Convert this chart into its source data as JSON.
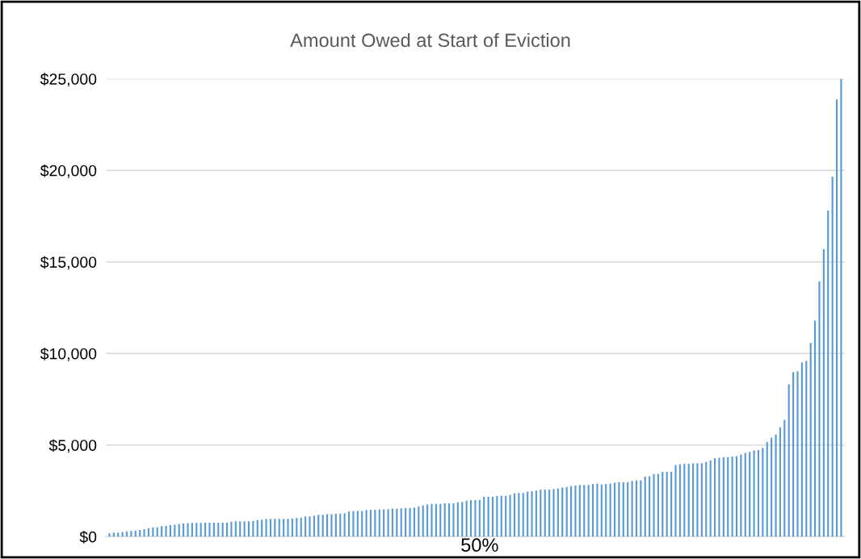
{
  "chart_data": {
    "type": "bar",
    "title": "Amount Owed at Start of Eviction",
    "categories": [
      null,
      null,
      null,
      null,
      null,
      null,
      null,
      null,
      null,
      null,
      null,
      null,
      null,
      null,
      null,
      null,
      null,
      null,
      null,
      null,
      null,
      null,
      null,
      null,
      null,
      null,
      null,
      null,
      null,
      null,
      null,
      null,
      null,
      null,
      null,
      null,
      null,
      null,
      null,
      null,
      null,
      null,
      null,
      null,
      null,
      null,
      null,
      null,
      null,
      null,
      null,
      null,
      null,
      null,
      null,
      null,
      null,
      null,
      null,
      null,
      null,
      null,
      null,
      null,
      null,
      null,
      null,
      null,
      null,
      null,
      null,
      null,
      null,
      null,
      null,
      null,
      null,
      null,
      null,
      null,
      null,
      null,
      null,
      null,
      null,
      "50%",
      null,
      null,
      null,
      null,
      null,
      null,
      null,
      null,
      null,
      null,
      null,
      null,
      null,
      null,
      null,
      null,
      null,
      null,
      null,
      null,
      null,
      null,
      null,
      null,
      null,
      null,
      null,
      null,
      null,
      null,
      null,
      null,
      null,
      null,
      null,
      null,
      null,
      null,
      null,
      null,
      null,
      null,
      null,
      null,
      null,
      null,
      null,
      null,
      null,
      null,
      null,
      null,
      null,
      null,
      null,
      null,
      null,
      null,
      null,
      null,
      null,
      null,
      null,
      null,
      null,
      null,
      null,
      null,
      null,
      null,
      null,
      null,
      null,
      null,
      null,
      null,
      null,
      null,
      null,
      null,
      null,
      null,
      null
    ],
    "values": [
      190,
      220,
      220,
      250,
      290,
      310,
      320,
      370,
      410,
      460,
      510,
      510,
      570,
      590,
      630,
      650,
      690,
      720,
      740,
      750,
      750,
      750,
      760,
      760,
      760,
      760,
      760,
      760,
      820,
      840,
      840,
      840,
      840,
      850,
      900,
      930,
      970,
      970,
      970,
      970,
      970,
      970,
      990,
      1010,
      1040,
      1100,
      1100,
      1150,
      1190,
      1190,
      1220,
      1220,
      1250,
      1260,
      1280,
      1380,
      1400,
      1400,
      1400,
      1460,
      1470,
      1470,
      1490,
      1490,
      1500,
      1530,
      1530,
      1540,
      1570,
      1570,
      1590,
      1650,
      1710,
      1750,
      1780,
      1780,
      1780,
      1820,
      1820,
      1820,
      1870,
      1900,
      1960,
      1990,
      1990,
      2010,
      2180,
      2180,
      2180,
      2210,
      2230,
      2230,
      2280,
      2370,
      2380,
      2380,
      2460,
      2480,
      2510,
      2570,
      2570,
      2570,
      2600,
      2630,
      2680,
      2710,
      2760,
      2790,
      2820,
      2820,
      2820,
      2870,
      2900,
      2840,
      2870,
      2900,
      2940,
      2980,
      2980,
      2980,
      3040,
      3070,
      3070,
      3280,
      3290,
      3410,
      3430,
      3540,
      3540,
      3540,
      3910,
      3950,
      3980,
      3980,
      4000,
      4010,
      4010,
      4090,
      4150,
      4290,
      4310,
      4340,
      4340,
      4370,
      4400,
      4480,
      4570,
      4630,
      4700,
      4720,
      4850,
      5170,
      5400,
      5570,
      5970,
      6380,
      8320,
      8980,
      9030,
      9510,
      9600,
      10580,
      11800,
      13940,
      15690,
      17810,
      19660,
      23870,
      25000
    ],
    "color": "#5b9bd5",
    "ylim": [
      0,
      25000
    ],
    "yticks": [
      {
        "value": 0,
        "label": "$0"
      },
      {
        "value": 5000,
        "label": "$5,000"
      },
      {
        "value": 10000,
        "label": "$10,000"
      },
      {
        "value": 15000,
        "label": "$15,000"
      },
      {
        "value": 20000,
        "label": "$20,000"
      },
      {
        "value": 25000,
        "label": "$25,000"
      }
    ],
    "grid": "y"
  }
}
